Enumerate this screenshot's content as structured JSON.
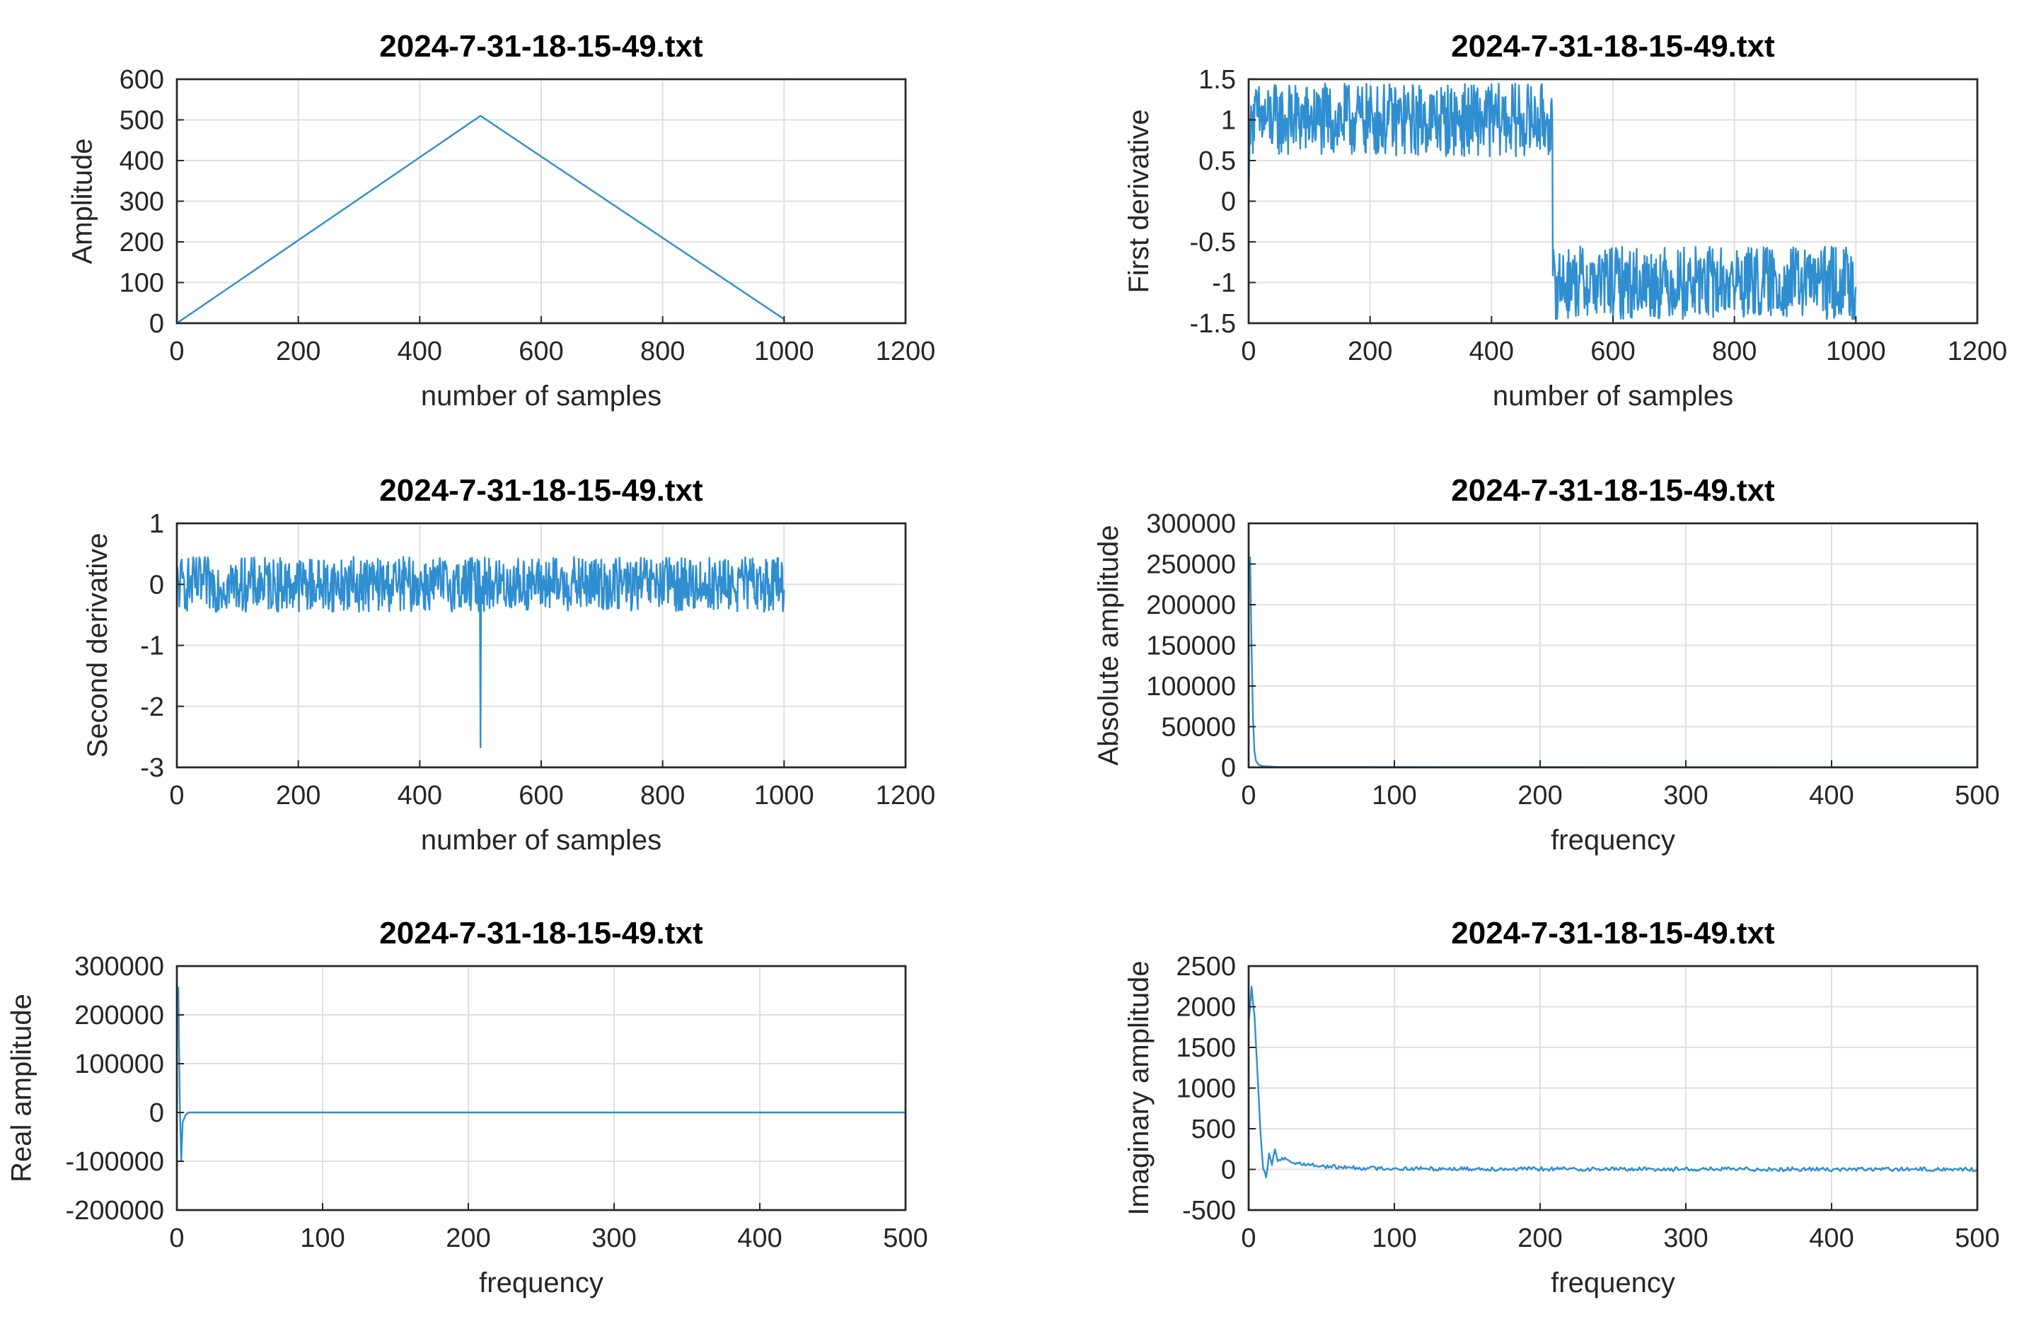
{
  "figure": {
    "background": "#ffffff",
    "line_color": "#0072bd",
    "grid_color": "#dfdfdf"
  },
  "chart_data": [
    {
      "type": "line",
      "title": "2024-7-31-18-15-49.txt",
      "xlabel": "number of samples",
      "ylabel": "Amplitude",
      "xlim": [
        0,
        1200
      ],
      "ylim": [
        0,
        600
      ],
      "xticks": [
        0,
        200,
        400,
        600,
        800,
        1000,
        1200
      ],
      "yticks": [
        0,
        100,
        200,
        300,
        400,
        500,
        600
      ],
      "xtick_labels": [
        "0",
        "200",
        "400",
        "600",
        "800",
        "1000",
        "1200"
      ],
      "ytick_labels": [
        "0",
        "100",
        "200",
        "300",
        "400",
        "500",
        "600"
      ],
      "grid": true,
      "series": [
        {
          "x": [
            0,
            500,
            1000
          ],
          "y": [
            0,
            510,
            10
          ]
        }
      ]
    },
    {
      "type": "line",
      "title": "2024-7-31-18-15-49.txt",
      "xlabel": "number of samples",
      "ylabel": "First derivative",
      "xlim": [
        0,
        1200
      ],
      "ylim": [
        -1.5,
        1.5
      ],
      "xticks": [
        0,
        200,
        400,
        600,
        800,
        1000,
        1200
      ],
      "yticks": [
        -1.5,
        -1,
        -0.5,
        0,
        0.5,
        1,
        1.5
      ],
      "xtick_labels": [
        "0",
        "200",
        "400",
        "600",
        "800",
        "1000",
        "1200"
      ],
      "ytick_labels": [
        "-1.5",
        "-1",
        "-0.5",
        "0",
        "0.5",
        "1",
        "1.5"
      ],
      "grid": true,
      "series": [
        {
          "x": [
            0,
            1,
            5,
            500,
            501,
            505,
            1000
          ],
          "y": [
            0,
            0.5,
            1,
            1,
            -1,
            -1,
            -1
          ],
          "noise": 0.45
        }
      ]
    },
    {
      "type": "line",
      "title": "2024-7-31-18-15-49.txt",
      "xlabel": "number of samples",
      "ylabel": "Second derivative",
      "xlim": [
        0,
        1200
      ],
      "ylim": [
        -3,
        1
      ],
      "xticks": [
        0,
        200,
        400,
        600,
        800,
        1000,
        1200
      ],
      "yticks": [
        -3,
        -2,
        -1,
        0,
        1
      ],
      "xtick_labels": [
        "0",
        "200",
        "400",
        "600",
        "800",
        "1000",
        "1200"
      ],
      "ytick_labels": [
        "-3",
        "-2",
        "-1",
        "0",
        "1"
      ],
      "grid": true,
      "series": [
        {
          "x": [
            0,
            499,
            500,
            501,
            1000
          ],
          "y": [
            0,
            0,
            -2.6,
            0,
            0
          ],
          "noise": 0.45
        }
      ]
    },
    {
      "type": "line",
      "title": "2024-7-31-18-15-49.txt",
      "xlabel": "frequency",
      "ylabel": "Absolute amplitude",
      "xlim": [
        0,
        500
      ],
      "ylim": [
        0,
        300000
      ],
      "xticks": [
        0,
        100,
        200,
        300,
        400,
        500
      ],
      "yticks": [
        0,
        50000,
        100000,
        150000,
        200000,
        250000,
        300000
      ],
      "xtick_labels": [
        "0",
        "100",
        "200",
        "300",
        "400",
        "500"
      ],
      "ytick_labels": [
        "0",
        "50000",
        "100000",
        "150000",
        "200000",
        "250000",
        "300000"
      ],
      "grid": true,
      "series": [
        {
          "x": [
            0,
            1,
            2,
            3,
            4,
            5,
            7,
            10,
            20,
            500
          ],
          "y": [
            255000,
            258000,
            150000,
            60000,
            20000,
            8000,
            3000,
            1500,
            500,
            100
          ]
        }
      ]
    },
    {
      "type": "line",
      "title": "2024-7-31-18-15-49.txt",
      "xlabel": "frequency",
      "ylabel": "Real amplitude",
      "xlim": [
        0,
        500
      ],
      "ylim": [
        -200000,
        300000
      ],
      "xticks": [
        0,
        100,
        200,
        300,
        400,
        500
      ],
      "yticks": [
        -200000,
        -100000,
        0,
        100000,
        200000,
        300000
      ],
      "xtick_labels": [
        "0",
        "100",
        "200",
        "300",
        "400",
        "500"
      ],
      "ytick_labels": [
        "-200000",
        "-100000",
        "0",
        "100000",
        "200000",
        "300000"
      ],
      "grid": true,
      "series": [
        {
          "x": [
            0,
            1,
            2,
            3,
            4,
            6,
            8,
            500
          ],
          "y": [
            258000,
            255000,
            20000,
            -100000,
            -20000,
            -5000,
            0,
            0
          ]
        }
      ]
    },
    {
      "type": "line",
      "title": "2024-7-31-18-15-49.txt",
      "xlabel": "frequency",
      "ylabel": "Imaginary amplitude",
      "xlim": [
        0,
        500
      ],
      "ylim": [
        -500,
        2500
      ],
      "xticks": [
        0,
        100,
        200,
        300,
        400,
        500
      ],
      "yticks": [
        -500,
        0,
        500,
        1000,
        1500,
        2000,
        2500
      ],
      "xtick_labels": [
        "0",
        "100",
        "200",
        "300",
        "400",
        "500"
      ],
      "ytick_labels": [
        "-500",
        "0",
        "500",
        "1000",
        "1500",
        "2000",
        "2500"
      ],
      "grid": true,
      "series": [
        {
          "x": [
            0,
            2,
            4,
            6,
            8,
            10,
            12,
            14,
            16,
            18,
            20,
            25,
            30,
            40,
            50,
            70,
            100,
            200,
            500
          ],
          "y": [
            1800,
            2250,
            1900,
            1200,
            500,
            0,
            -100,
            200,
            50,
            250,
            100,
            150,
            80,
            60,
            40,
            20,
            10,
            5,
            0
          ],
          "noise": 25
        }
      ]
    }
  ]
}
